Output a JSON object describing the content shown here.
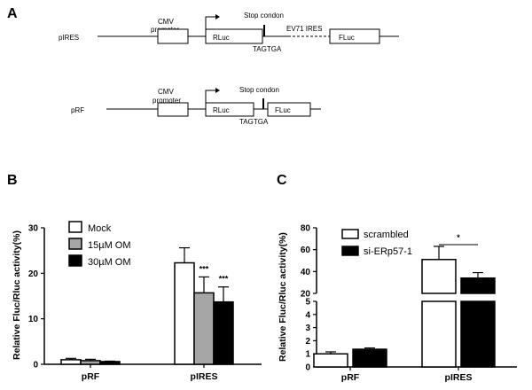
{
  "figure": {
    "panels": {
      "a": {
        "label": "A"
      },
      "b": {
        "label": "B"
      },
      "c": {
        "label": "C"
      }
    },
    "diagram_pires": {
      "construct_name": "pIRES",
      "promoter": [
        "CMV",
        "promoter"
      ],
      "rluc": "RLuc",
      "stop": "Stop condon",
      "ires": "EV71 IRES",
      "fluc": "FLuc",
      "seq": "TAGTGA"
    },
    "diagram_prf": {
      "construct_name": "pRF",
      "promoter": [
        "CMV",
        "promoter"
      ],
      "rluc": "RLuc",
      "stop": "Stop condon",
      "fluc": "FLuc",
      "seq": "TAGTGA"
    },
    "colors": {
      "mock": "#ffffff",
      "om15": "#a6a6a6",
      "om30": "#000000",
      "scrambled": "#ffffff",
      "si": "#000000"
    }
  },
  "chart_data": [
    {
      "type": "bar",
      "panel": "B",
      "ylabel": "Relative Fluc/Rluc activity(%)",
      "categories": [
        "pRF",
        "pIRES"
      ],
      "ylim": [
        0,
        30
      ],
      "yticks": [
        0,
        10,
        20,
        30
      ],
      "legend_position": "top-left",
      "series": [
        {
          "name": "Mock",
          "values": [
            1.0,
            22.3
          ],
          "errors": [
            0.3,
            3.3
          ],
          "color": "#ffffff"
        },
        {
          "name": "15µM OM",
          "values": [
            0.8,
            15.7
          ],
          "errors": [
            0.3,
            3.5
          ],
          "color": "#a6a6a6"
        },
        {
          "name": "30µM OM",
          "values": [
            0.6,
            13.7
          ],
          "errors": [
            0.1,
            3.3
          ],
          "color": "#000000"
        }
      ],
      "annotations": [
        {
          "category": "pIRES",
          "series": "15µM OM",
          "text": "***"
        },
        {
          "category": "pIRES",
          "series": "30µM OM",
          "text": "***"
        }
      ]
    },
    {
      "type": "bar",
      "panel": "C",
      "ylabel": "Relative Fluc/Rluc activity(%)",
      "categories": [
        "pRF",
        "pIRES"
      ],
      "axis_break": {
        "lower": [
          0,
          5
        ],
        "upper": [
          20,
          80
        ]
      },
      "yticks_lower": [
        0,
        1,
        2,
        3,
        4,
        5
      ],
      "yticks_upper": [
        20,
        40,
        60,
        80
      ],
      "legend_position": "top-left",
      "series": [
        {
          "name": "scrambled",
          "values": [
            1.0,
            51.0
          ],
          "errors": [
            0.15,
            12.0
          ],
          "color": "#ffffff"
        },
        {
          "name": "si-ERp57-1",
          "values": [
            1.35,
            34.0
          ],
          "errors": [
            0.1,
            5.0
          ],
          "color": "#000000"
        }
      ],
      "annotations": [
        {
          "between": [
            "scrambled",
            "si-ERp57-1"
          ],
          "category": "pIRES",
          "text": "*"
        }
      ]
    }
  ]
}
